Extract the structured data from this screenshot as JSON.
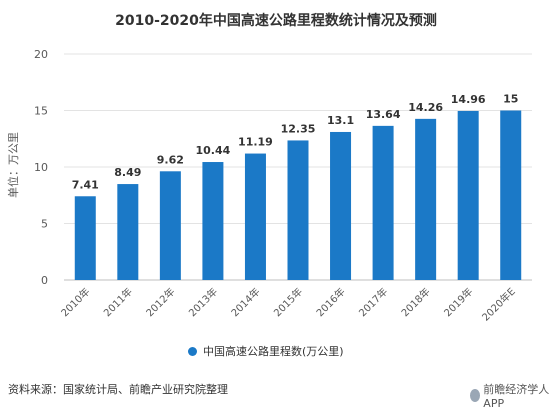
{
  "colors": {
    "bar": "#1b79c7",
    "grid": "#e3e3e3",
    "axis_text": "#595959"
  },
  "source_text": "资料来源：国家统计局、前瞻产业研究院整理",
  "brand_text": "前瞻经济学人APP",
  "chart_data": {
    "type": "bar",
    "title": "2010-2020年中国高速公路里程数统计情况及预测",
    "ylabel": "单位：万公里",
    "xlabel": "",
    "ylim": [
      0,
      20
    ],
    "yticks": [
      "0",
      "5",
      "10",
      "15",
      "20"
    ],
    "grid": true,
    "legend_position": "bottom",
    "categories": [
      "2010年",
      "2011年",
      "2012年",
      "2013年",
      "2014年",
      "2015年",
      "2016年",
      "2017年",
      "2018年",
      "2019年",
      "2020年E"
    ],
    "series": [
      {
        "name": "中国高速公路里程数(万公里)",
        "values": [
          7.41,
          8.49,
          9.62,
          10.44,
          11.19,
          12.35,
          13.1,
          13.64,
          14.26,
          14.96,
          15
        ],
        "labels": [
          "7.41",
          "8.49",
          "9.62",
          "10.44",
          "11.19",
          "12.35",
          "13.1",
          "13.64",
          "14.26",
          "14.96",
          "15"
        ]
      }
    ]
  }
}
